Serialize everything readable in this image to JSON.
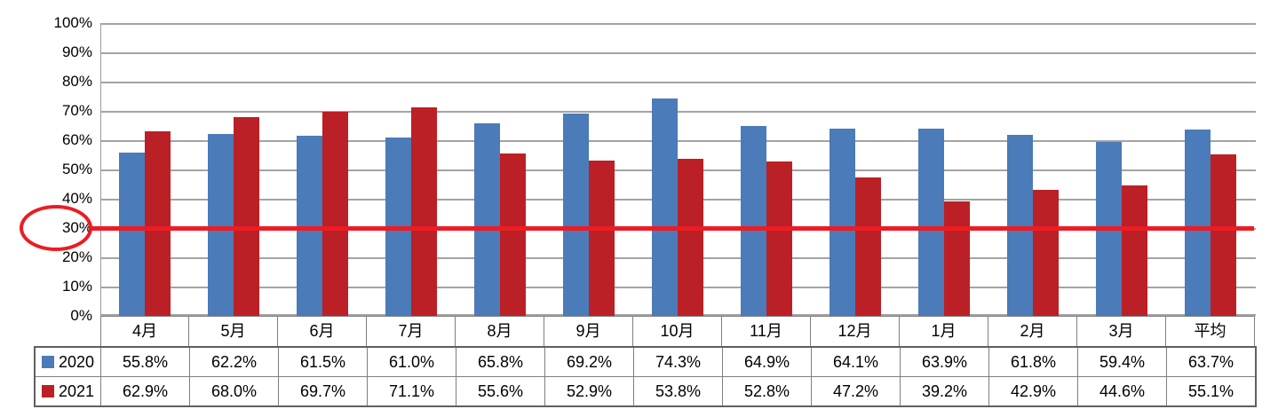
{
  "chart_data": {
    "type": "bar",
    "title": "",
    "xlabel": "",
    "ylabel": "",
    "categories": [
      "4月",
      "5月",
      "6月",
      "7月",
      "8月",
      "9月",
      "10月",
      "11月",
      "12月",
      "1月",
      "2月",
      "3月",
      "平均"
    ],
    "series": [
      {
        "name": "2020",
        "color": "#4b7bb8",
        "values": [
          55.8,
          62.2,
          61.5,
          61.0,
          65.8,
          69.2,
          74.3,
          64.9,
          64.1,
          63.9,
          61.8,
          59.4,
          63.7
        ]
      },
      {
        "name": "2021",
        "color": "#bb2026",
        "values": [
          62.9,
          68.0,
          69.7,
          71.1,
          55.6,
          52.9,
          53.8,
          52.8,
          47.2,
          39.2,
          42.9,
          44.6,
          55.1
        ]
      }
    ],
    "ylim": [
      0,
      100
    ],
    "y_ticks": [
      "100%",
      "90%",
      "80%",
      "70%",
      "60%",
      "50%",
      "40%",
      "30%",
      "20%",
      "10%",
      "0%"
    ],
    "value_suffix": "%",
    "grid": "horizontal",
    "gridline_color": "#a3a3a3",
    "legend_position": "table-row-headers",
    "annotations": {
      "threshold_line": {
        "value": 30,
        "color": "#ec1c24"
      },
      "highlighted_tick": {
        "label": "30%",
        "shape": "ellipse",
        "color": "#ec1c24"
      }
    }
  }
}
